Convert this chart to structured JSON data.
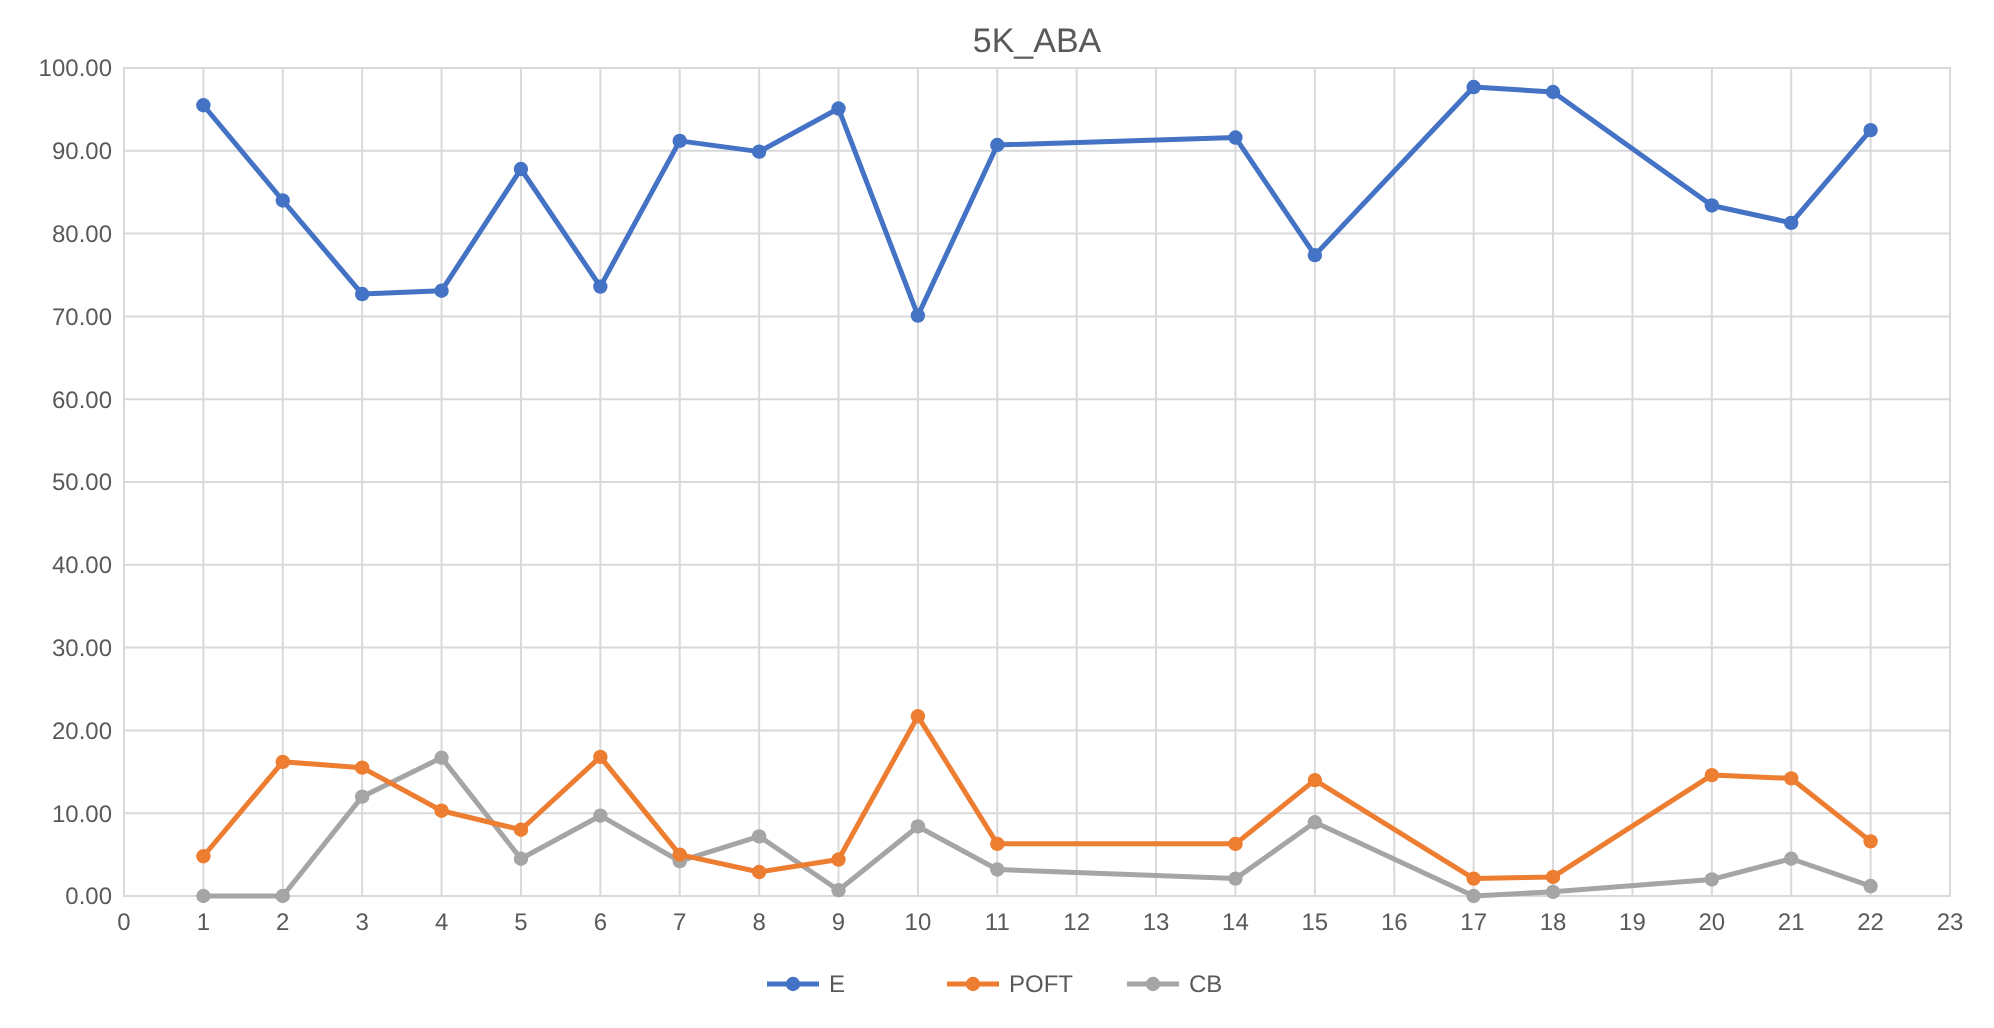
{
  "chart_data": {
    "type": "line",
    "title": "5K_ABA",
    "x": [
      1,
      2,
      3,
      4,
      5,
      6,
      7,
      8,
      9,
      10,
      11,
      14,
      15,
      17,
      18,
      20,
      21,
      22
    ],
    "series": [
      {
        "name": "E",
        "color": "#4472c4",
        "values": [
          95.5,
          84,
          72.7,
          73.1,
          87.8,
          73.6,
          91.2,
          89.9,
          95.1,
          70.1,
          90.7,
          91.6,
          77.4,
          97.7,
          97.1,
          83.4,
          81.3,
          92.5
        ]
      },
      {
        "name": "POFT",
        "color": "#ed7d31",
        "values": [
          4.8,
          16.2,
          15.5,
          10.3,
          8.0,
          16.8,
          5.0,
          2.9,
          4.4,
          21.7,
          6.3,
          6.3,
          14.0,
          2.1,
          2.3,
          14.6,
          14.2,
          6.6
        ]
      },
      {
        "name": "CB",
        "color": "#a5a5a5",
        "values": [
          0,
          0,
          12,
          16.7,
          4.5,
          9.7,
          4.2,
          7.2,
          0.7,
          8.4,
          3.2,
          2.1,
          8.9,
          0,
          0.5,
          2.0,
          4.5,
          1.2
        ]
      }
    ],
    "xlim": [
      0,
      23
    ],
    "xticks": [
      0,
      1,
      2,
      3,
      4,
      5,
      6,
      7,
      8,
      9,
      10,
      11,
      12,
      13,
      14,
      15,
      16,
      17,
      18,
      19,
      20,
      21,
      22,
      23
    ],
    "ylim": [
      0,
      100
    ],
    "yticks": [
      {
        "value": 0,
        "label": "0.00"
      },
      {
        "value": 10,
        "label": "10.00"
      },
      {
        "value": 20,
        "label": "20.00"
      },
      {
        "value": 30,
        "label": "30.00"
      },
      {
        "value": 40,
        "label": "40.00"
      },
      {
        "value": 50,
        "label": "50.00"
      },
      {
        "value": 60,
        "label": "60.00"
      },
      {
        "value": 70,
        "label": "70.00"
      },
      {
        "value": 80,
        "label": "80.00"
      },
      {
        "value": 90,
        "label": "90.00"
      },
      {
        "value": 100,
        "label": "100.00"
      }
    ],
    "grid": true,
    "legend": "bottom",
    "marker": "circle",
    "line_style": "solid"
  }
}
